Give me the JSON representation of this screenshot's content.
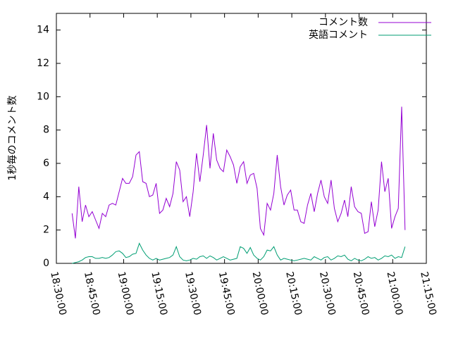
{
  "chart_data": {
    "type": "line",
    "ylabel": "1秒毎のコメント数",
    "x": [
      "18:37:00",
      "18:38:30",
      "18:40:00",
      "18:41:30",
      "18:43:00",
      "18:44:30",
      "18:46:00",
      "18:47:30",
      "18:49:00",
      "18:50:30",
      "18:52:00",
      "18:53:30",
      "18:55:00",
      "18:56:30",
      "18:58:00",
      "18:59:30",
      "19:01:00",
      "19:02:30",
      "19:04:00",
      "19:05:30",
      "19:07:00",
      "19:08:30",
      "19:10:00",
      "19:11:30",
      "19:13:00",
      "19:14:30",
      "19:16:00",
      "19:17:30",
      "19:19:00",
      "19:20:30",
      "19:22:00",
      "19:23:30",
      "19:25:00",
      "19:26:30",
      "19:28:00",
      "19:29:30",
      "19:31:00",
      "19:32:30",
      "19:34:00",
      "19:35:30",
      "19:37:00",
      "19:38:30",
      "19:40:00",
      "19:41:30",
      "19:43:00",
      "19:44:30",
      "19:46:00",
      "19:47:30",
      "19:49:00",
      "19:50:30",
      "19:52:00",
      "19:53:30",
      "19:55:00",
      "19:56:30",
      "19:58:00",
      "19:59:30",
      "20:01:00",
      "20:02:30",
      "20:04:00",
      "20:05:30",
      "20:07:00",
      "20:08:30",
      "20:10:00",
      "20:11:30",
      "20:13:00",
      "20:14:30",
      "20:16:00",
      "20:17:30",
      "20:19:00",
      "20:20:30",
      "20:22:00",
      "20:23:30",
      "20:25:00",
      "20:26:30",
      "20:28:00",
      "20:29:30",
      "20:31:00",
      "20:32:30",
      "20:34:00",
      "20:35:30",
      "20:37:00",
      "20:38:30",
      "20:40:00",
      "20:41:30",
      "20:43:00",
      "20:44:30",
      "20:46:00",
      "20:47:30",
      "20:49:00",
      "20:50:30",
      "20:52:00",
      "20:53:30",
      "20:55:00",
      "20:56:30",
      "20:58:00",
      "20:59:30",
      "21:01:00",
      "21:02:30",
      "21:04:00",
      "21:05:30"
    ],
    "series": [
      {
        "name": "コメント数",
        "color": "#9400d3",
        "values": [
          3.0,
          1.5,
          4.6,
          2.5,
          3.5,
          2.8,
          3.1,
          2.6,
          2.1,
          3.0,
          2.8,
          3.5,
          3.6,
          3.5,
          4.3,
          5.1,
          4.8,
          4.8,
          5.2,
          6.5,
          6.7,
          4.9,
          4.8,
          4.0,
          4.1,
          4.8,
          3.0,
          3.2,
          3.9,
          3.4,
          4.2,
          6.1,
          5.6,
          3.7,
          4.0,
          2.8,
          4.3,
          6.6,
          4.9,
          6.5,
          8.3,
          5.7,
          7.8,
          6.2,
          5.7,
          5.5,
          6.8,
          6.4,
          5.9,
          4.8,
          5.8,
          6.1,
          4.8,
          5.3,
          5.4,
          4.5,
          2.1,
          1.7,
          3.6,
          3.2,
          4.2,
          6.5,
          4.6,
          3.5,
          4.1,
          4.4,
          3.2,
          3.2,
          2.5,
          2.4,
          3.5,
          4.2,
          3.1,
          4.2,
          5.0,
          4.0,
          3.6,
          5.0,
          3.3,
          2.5,
          3.0,
          3.8,
          2.8,
          4.6,
          3.4,
          3.1,
          3.0,
          1.8,
          1.9,
          3.7,
          2.2,
          3.2,
          6.1,
          4.3,
          5.1,
          2.1,
          2.8,
          3.3,
          9.4,
          2.0
        ]
      },
      {
        "name": "英語コメント",
        "color": "#009e73",
        "values": [
          0.0,
          0.05,
          0.1,
          0.2,
          0.35,
          0.4,
          0.4,
          0.3,
          0.3,
          0.35,
          0.3,
          0.35,
          0.5,
          0.7,
          0.75,
          0.6,
          0.35,
          0.4,
          0.55,
          0.6,
          1.2,
          0.8,
          0.5,
          0.3,
          0.2,
          0.3,
          0.2,
          0.25,
          0.3,
          0.35,
          0.5,
          1.0,
          0.4,
          0.2,
          0.15,
          0.2,
          0.3,
          0.25,
          0.4,
          0.45,
          0.3,
          0.45,
          0.35,
          0.2,
          0.3,
          0.4,
          0.3,
          0.2,
          0.25,
          0.3,
          1.0,
          0.9,
          0.6,
          0.95,
          0.5,
          0.3,
          0.2,
          0.4,
          0.8,
          0.75,
          1.0,
          0.5,
          0.2,
          0.3,
          0.25,
          0.2,
          0.15,
          0.2,
          0.25,
          0.3,
          0.25,
          0.2,
          0.4,
          0.3,
          0.2,
          0.35,
          0.4,
          0.2,
          0.3,
          0.45,
          0.4,
          0.5,
          0.25,
          0.15,
          0.3,
          0.2,
          0.15,
          0.25,
          0.4,
          0.3,
          0.35,
          0.2,
          0.3,
          0.45,
          0.4,
          0.5,
          0.3,
          0.4,
          0.35,
          1.0
        ]
      }
    ],
    "xlim": [
      "18:30:00",
      "21:15:00"
    ],
    "xticks": [
      "18:30:00",
      "18:45:00",
      "19:00:00",
      "19:15:00",
      "19:30:00",
      "19:45:00",
      "20:00:00",
      "20:15:00",
      "20:30:00",
      "20:45:00",
      "21:00:00",
      "21:15:00"
    ],
    "ylim": [
      0,
      15
    ],
    "yticks": [
      0,
      2,
      4,
      6,
      8,
      10,
      12,
      14
    ],
    "legend": "top-right"
  }
}
